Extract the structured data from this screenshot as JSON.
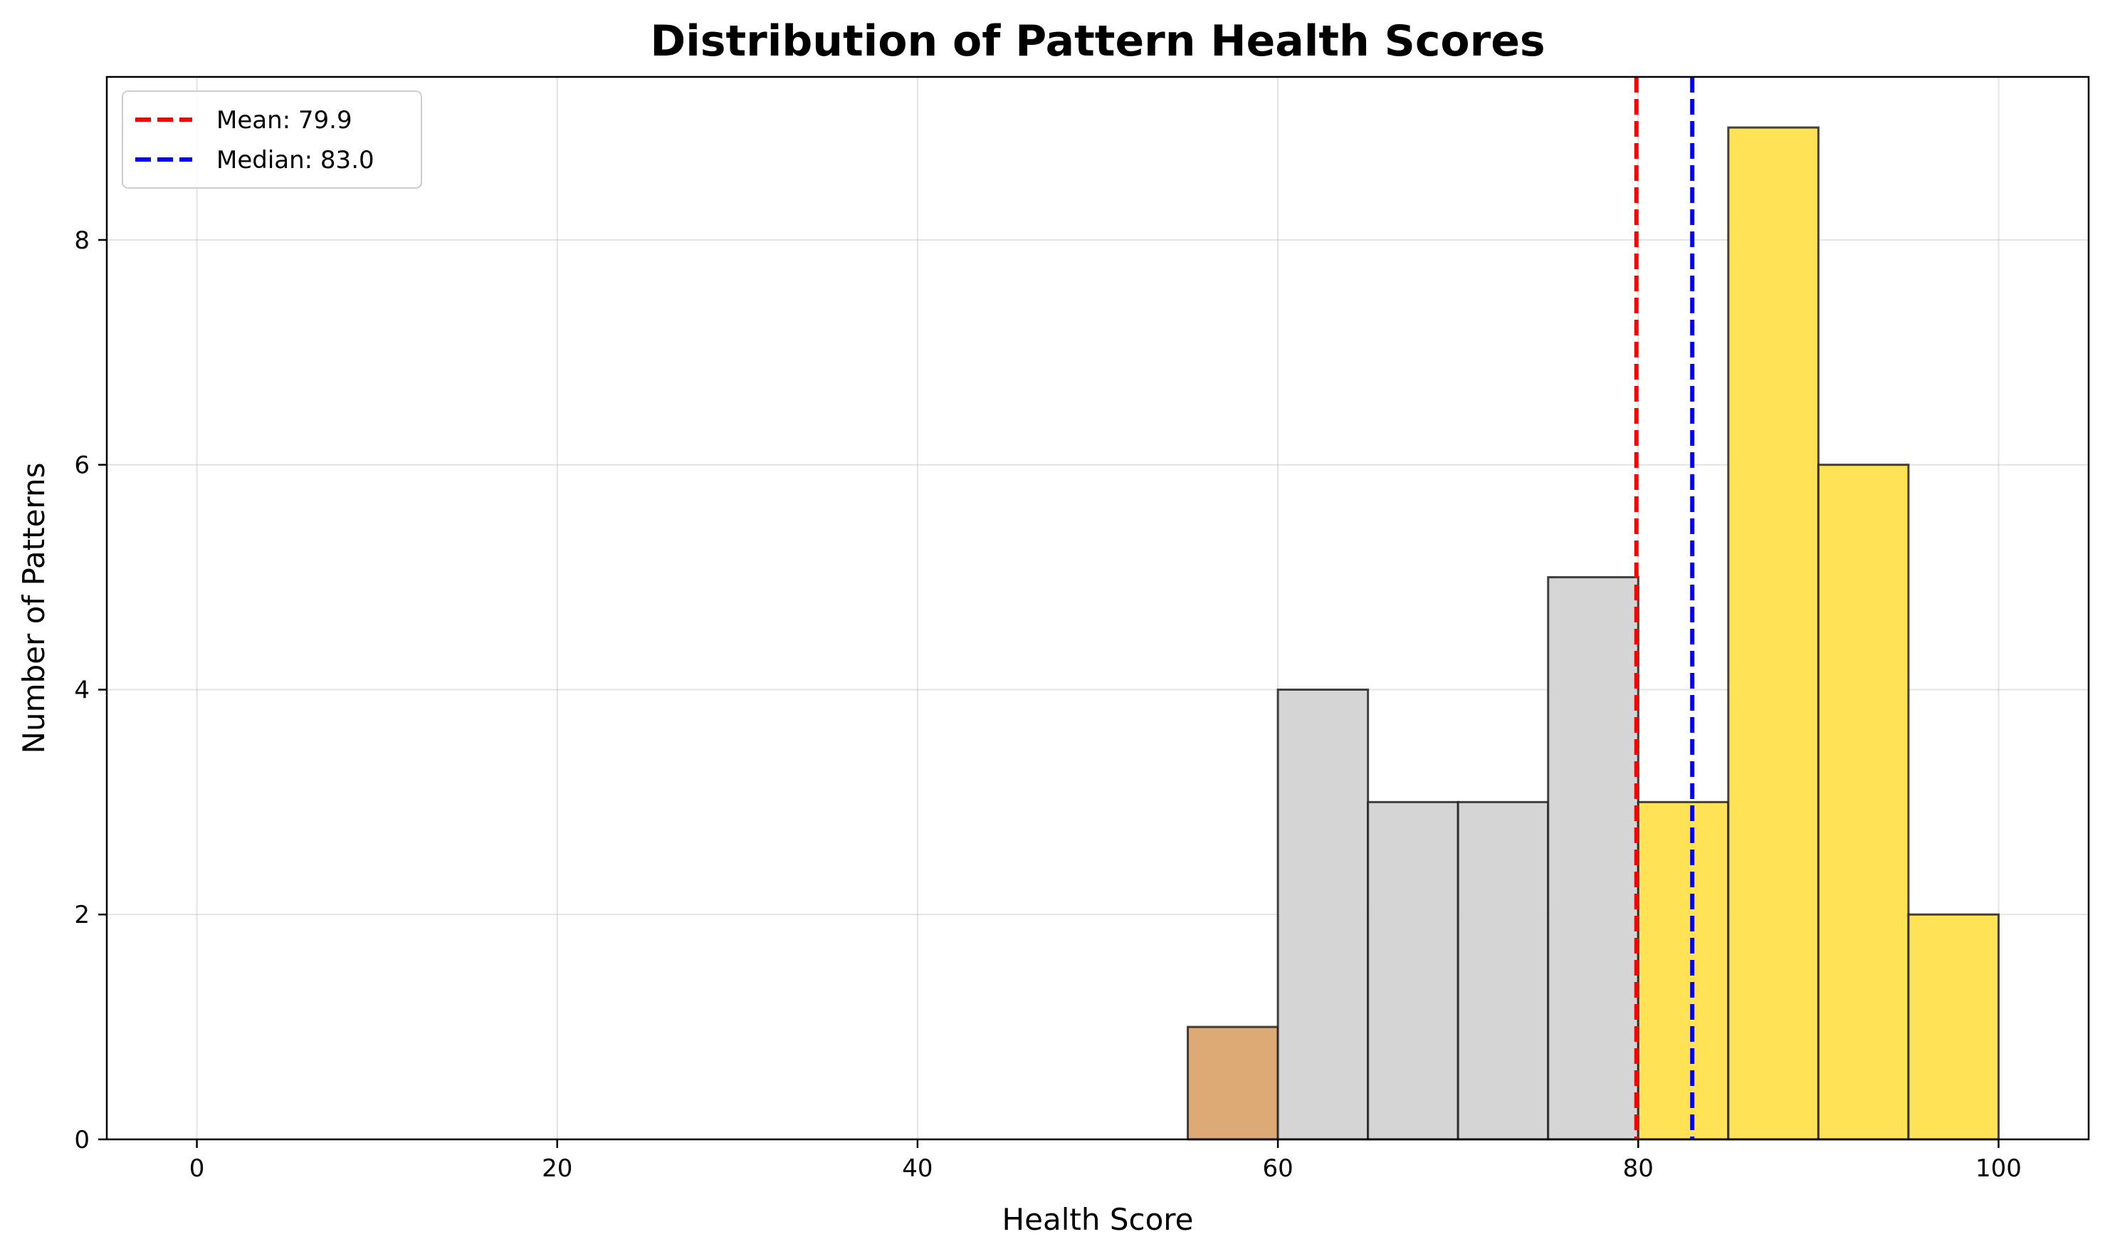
{
  "chart_data": {
    "type": "bar",
    "title": "Distribution of Pattern Health Scores",
    "xlabel": "Health Score",
    "ylabel": "Number of Patterns",
    "xlim": [
      -5,
      105
    ],
    "ylim": [
      0,
      9.45
    ],
    "xticks": [
      0,
      20,
      40,
      60,
      80,
      100
    ],
    "yticks": [
      0,
      2,
      4,
      6,
      8
    ],
    "grid": true,
    "bins": [
      {
        "start": 55,
        "end": 60,
        "count": 1,
        "color": "#dba46e"
      },
      {
        "start": 60,
        "end": 65,
        "count": 4,
        "color": "#d3d3d3"
      },
      {
        "start": 65,
        "end": 70,
        "count": 3,
        "color": "#d3d3d3"
      },
      {
        "start": 70,
        "end": 75,
        "count": 3,
        "color": "#d3d3d3"
      },
      {
        "start": 75,
        "end": 80,
        "count": 5,
        "color": "#d3d3d3"
      },
      {
        "start": 80,
        "end": 85,
        "count": 3,
        "color": "#ffe04d"
      },
      {
        "start": 85,
        "end": 90,
        "count": 9,
        "color": "#ffe04d"
      },
      {
        "start": 90,
        "end": 95,
        "count": 6,
        "color": "#ffe04d"
      },
      {
        "start": 95,
        "end": 100,
        "count": 2,
        "color": "#ffe04d"
      }
    ],
    "reference_lines": [
      {
        "label": "Mean: 79.9",
        "value": 79.9,
        "color": "#ff0000"
      },
      {
        "label": "Median: 83.0",
        "value": 83.0,
        "color": "#0000ff"
      }
    ],
    "legend_position": "top-left"
  }
}
